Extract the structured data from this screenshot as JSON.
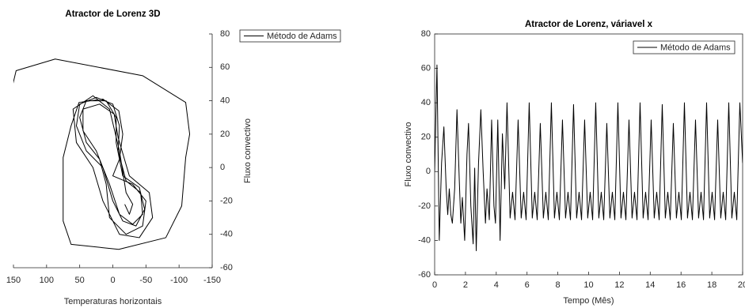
{
  "chart_data": [
    {
      "type": "line",
      "title": "Atractor de Lorenz 3D",
      "xlabel": "Temperaturas horizontais",
      "ylabel": "Fluxo convectivo",
      "xlim": [
        150,
        -150
      ],
      "xticks": [
        150,
        100,
        50,
        0,
        -50,
        -100,
        -150
      ],
      "ylim": [
        -60,
        80
      ],
      "yticks": [
        -60,
        -40,
        -20,
        0,
        20,
        40,
        60,
        80
      ],
      "y_axis_side": "right",
      "box": false,
      "legend": "upper right",
      "series": [
        {
          "name": "Método de Adams",
          "color": "#000000",
          "x": [
            152,
            146,
            87,
            -45,
            -110,
            -116,
            -110,
            -104,
            -80,
            -9,
            63,
            75,
            75,
            63,
            51,
            15,
            -9,
            -15,
            -10,
            0,
            -30,
            -50,
            -45,
            -20,
            5,
            10,
            20,
            40,
            50,
            40,
            10,
            -5,
            -5,
            -15,
            -40,
            -48,
            -35,
            -15,
            0,
            15,
            40,
            55,
            50,
            25,
            0,
            -10,
            -8,
            -20,
            -42,
            -45,
            -30,
            -10,
            5,
            25,
            45,
            45,
            20,
            -2,
            -8,
            -25,
            -55,
            -60,
            -40,
            -10,
            15,
            30,
            55,
            60,
            30,
            5,
            -10,
            -20,
            -30,
            -25,
            -18
          ],
          "values": [
            48,
            58,
            65,
            55,
            39,
            20,
            6,
            -23,
            -42,
            -49,
            -46,
            -32,
            6,
            25,
            39,
            41,
            34,
            20,
            5,
            -5,
            -10,
            -20,
            -35,
            -40,
            -30,
            -10,
            5,
            15,
            30,
            40,
            40,
            30,
            15,
            -5,
            -12,
            -25,
            -35,
            -32,
            -20,
            0,
            10,
            25,
            38,
            42,
            38,
            25,
            10,
            -8,
            -15,
            -28,
            -34,
            -28,
            -10,
            10,
            22,
            35,
            38,
            32,
            18,
            -5,
            -15,
            -30,
            -42,
            -40,
            -20,
            0,
            15,
            35,
            43,
            35,
            10,
            -15,
            -22,
            -28,
            -22
          ]
        }
      ]
    },
    {
      "type": "line",
      "title": "Atractor de Lorenz, váriavel x",
      "xlabel": "Tempo (Mês)",
      "ylabel": "Fluxo convectivo",
      "xlim": [
        0,
        20
      ],
      "xticks": [
        0,
        2,
        4,
        6,
        8,
        10,
        12,
        14,
        16,
        18,
        20
      ],
      "ylim": [
        -60,
        80
      ],
      "yticks": [
        -60,
        -40,
        -20,
        0,
        20,
        40,
        60,
        80
      ],
      "y_axis_side": "left",
      "box": true,
      "legend": "upper right",
      "series": [
        {
          "name": "Método de Adams",
          "color": "#000000",
          "x": [
            0,
            0.15,
            0.3,
            0.45,
            0.6,
            0.75,
            0.85,
            0.95,
            1.05,
            1.15,
            1.3,
            1.45,
            1.6,
            1.7,
            1.8,
            1.95,
            2.1,
            2.2,
            2.35,
            2.5,
            2.6,
            2.7,
            2.85,
            3.0,
            3.15,
            3.3,
            3.4,
            3.55,
            3.7,
            3.85,
            3.95,
            4.1,
            4.25,
            4.4,
            4.55,
            4.7,
            4.9,
            5.06,
            5.22,
            5.42,
            5.62,
            5.78,
            5.94,
            6.14,
            6.34,
            6.5,
            6.66,
            6.86,
            7.06,
            7.22,
            7.38,
            7.58,
            7.78,
            7.94,
            8.1,
            8.3,
            8.5,
            8.66,
            8.82,
            9.02,
            9.22,
            9.38,
            9.54,
            9.74,
            9.94,
            10.1,
            10.26,
            10.46,
            10.66,
            10.82,
            10.98,
            11.18,
            11.38,
            11.54,
            11.7,
            11.9,
            12.1,
            12.26,
            12.42,
            12.62,
            12.82,
            12.98,
            13.14,
            13.34,
            13.54,
            13.7,
            13.86,
            14.06,
            14.26,
            14.42,
            14.58,
            14.78,
            14.98,
            15.14,
            15.3,
            15.5,
            15.7,
            15.86,
            16.02,
            16.22,
            16.42,
            16.58,
            16.74,
            16.94,
            17.14,
            17.3,
            17.46,
            17.66,
            17.86,
            18.02,
            18.18,
            18.38,
            18.58,
            18.74,
            18.9,
            19.1,
            19.3,
            19.46,
            19.62,
            19.82,
            20
          ],
          "values": [
            0,
            62,
            -40,
            5,
            26,
            -10,
            -25,
            -10,
            -25,
            -30,
            -10,
            36,
            -5,
            -30,
            -15,
            -40,
            10,
            28,
            -20,
            -42,
            2,
            -46,
            5,
            36,
            0,
            -30,
            -10,
            -28,
            30,
            -20,
            -30,
            30,
            -40,
            22,
            -10,
            40,
            -27,
            -12,
            -28,
            30,
            -27,
            -12,
            -28,
            40,
            -27,
            -12,
            -28,
            28,
            -27,
            -12,
            -28,
            40,
            -27,
            -12,
            -28,
            30,
            -27,
            -12,
            -28,
            39,
            -27,
            -12,
            -28,
            30,
            -27,
            -12,
            -28,
            40,
            -27,
            -12,
            -28,
            28,
            -27,
            -12,
            -28,
            40,
            -27,
            -12,
            -28,
            30,
            -27,
            -12,
            -28,
            40,
            -27,
            -12,
            -28,
            30,
            -27,
            -12,
            -28,
            39,
            -27,
            -12,
            -28,
            28,
            -27,
            -12,
            -28,
            40,
            -27,
            -12,
            -28,
            30,
            -27,
            -12,
            -28,
            40,
            -27,
            -12,
            -28,
            30,
            -27,
            -12,
            -28,
            40,
            -27,
            -12,
            -28,
            40,
            5
          ]
        }
      ]
    }
  ]
}
